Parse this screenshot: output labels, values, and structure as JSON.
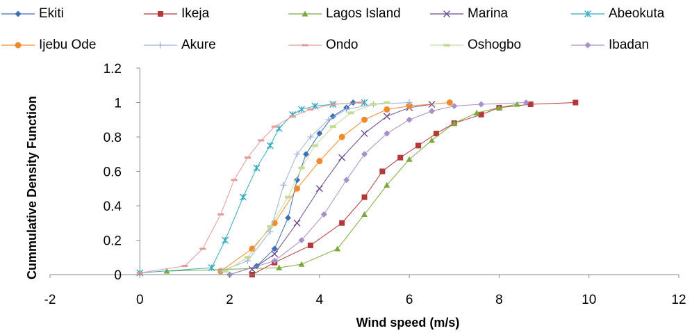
{
  "chart_data": {
    "type": "scatter",
    "xlabel": "Wind speed (m/s)",
    "ylabel": "Cummulative Density Function",
    "xlim": [
      -2,
      12
    ],
    "ylim": [
      0,
      1.2
    ],
    "xticks": [
      "-2",
      "0",
      "2",
      "4",
      "6",
      "8",
      "10",
      "12"
    ],
    "yticks": [
      "0",
      "0.2",
      "0.4",
      "0.6",
      "0.8",
      "1",
      "1.2"
    ],
    "grid": false,
    "legend_position": "top",
    "series": [
      {
        "name": "Ekiti",
        "color": "#3a6fb5",
        "marker": "diamond",
        "x": [
          2.0,
          2.6,
          3.0,
          3.3,
          3.5,
          3.7,
          4.0,
          4.3,
          4.6,
          4.75
        ],
        "y": [
          0.0,
          0.05,
          0.15,
          0.33,
          0.55,
          0.7,
          0.82,
          0.92,
          0.97,
          1.0
        ]
      },
      {
        "name": "Ikeja",
        "color": "#b3383a",
        "marker": "square",
        "x": [
          2.5,
          3.0,
          3.8,
          4.5,
          5.0,
          5.4,
          5.8,
          6.2,
          6.6,
          7.0,
          7.6,
          8.0,
          8.7,
          9.7
        ],
        "y": [
          0.0,
          0.07,
          0.17,
          0.3,
          0.45,
          0.6,
          0.68,
          0.75,
          0.82,
          0.88,
          0.93,
          0.97,
          0.99,
          1.0
        ]
      },
      {
        "name": "Lagos Island",
        "color": "#7aaa3c",
        "marker": "triangle",
        "x": [
          0.6,
          3.1,
          3.6,
          4.4,
          5.0,
          5.5,
          6.0,
          6.5,
          7.0,
          7.5,
          8.0,
          8.4
        ],
        "y": [
          0.02,
          0.04,
          0.06,
          0.15,
          0.35,
          0.52,
          0.67,
          0.78,
          0.88,
          0.94,
          0.97,
          0.99
        ]
      },
      {
        "name": "Marina",
        "color": "#6b4a92",
        "marker": "x",
        "x": [
          2.5,
          3.0,
          3.5,
          4.0,
          4.5,
          5.0,
          5.5,
          6.0,
          6.5
        ],
        "y": [
          0.03,
          0.12,
          0.3,
          0.5,
          0.68,
          0.82,
          0.92,
          0.97,
          0.99
        ]
      },
      {
        "name": "Abeokuta",
        "color": "#35a9c2",
        "marker": "asterisk",
        "x": [
          0.0,
          1.6,
          1.9,
          2.3,
          2.6,
          2.9,
          3.1,
          3.4,
          3.6,
          3.9,
          4.3,
          5.0
        ],
        "y": [
          0.01,
          0.04,
          0.2,
          0.45,
          0.62,
          0.75,
          0.85,
          0.93,
          0.96,
          0.98,
          0.99,
          1.0
        ]
      },
      {
        "name": "Ijebu Ode",
        "color": "#f08a2c",
        "marker": "circle",
        "x": [
          1.8,
          2.5,
          3.0,
          3.5,
          4.0,
          4.5,
          5.0,
          5.5,
          6.0,
          6.9
        ],
        "y": [
          0.02,
          0.15,
          0.3,
          0.5,
          0.66,
          0.8,
          0.9,
          0.96,
          0.98,
          1.0
        ]
      },
      {
        "name": "Akure",
        "color": "#9db3dc",
        "marker": "plus",
        "x": [
          1.8,
          2.4,
          2.9,
          3.2,
          3.5,
          3.8,
          4.2,
          4.6,
          5.2,
          6.0
        ],
        "y": [
          0.02,
          0.08,
          0.25,
          0.52,
          0.7,
          0.8,
          0.9,
          0.96,
          0.99,
          1.0
        ]
      },
      {
        "name": "Ondo",
        "color": "#e39a9a",
        "marker": "dash",
        "x": [
          0.0,
          1.0,
          1.4,
          1.8,
          2.1,
          2.4,
          2.7,
          3.0,
          3.4,
          3.8,
          4.3,
          4.9
        ],
        "y": [
          0.01,
          0.05,
          0.15,
          0.35,
          0.55,
          0.68,
          0.78,
          0.86,
          0.92,
          0.96,
          0.99,
          1.0
        ]
      },
      {
        "name": "Oshogbo",
        "color": "#c3dc96",
        "marker": "bar",
        "x": [
          1.9,
          2.4,
          2.9,
          3.3,
          3.6,
          3.9,
          4.3,
          4.7,
          5.2,
          5.5
        ],
        "y": [
          0.02,
          0.1,
          0.28,
          0.45,
          0.62,
          0.75,
          0.86,
          0.94,
          0.99,
          1.0
        ]
      },
      {
        "name": "Ibadan",
        "color": "#a88fc8",
        "marker": "diamond",
        "x": [
          2.0,
          3.0,
          3.6,
          4.1,
          4.6,
          5.0,
          5.5,
          6.0,
          6.5,
          7.0,
          7.6,
          8.6
        ],
        "y": [
          0.0,
          0.08,
          0.2,
          0.35,
          0.55,
          0.7,
          0.82,
          0.9,
          0.95,
          0.98,
          0.99,
          1.0
        ]
      }
    ]
  }
}
